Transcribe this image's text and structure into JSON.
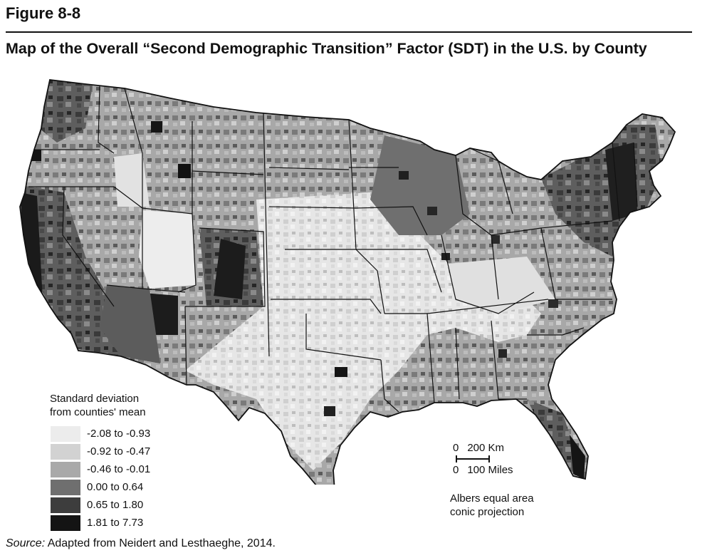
{
  "figure_label": "Figure 8-8",
  "title": "Map of the Overall “Second Demographic Transition” Factor (SDT) in the U.S. by County",
  "legend": {
    "title_line1": "Standard deviation",
    "title_line2": "from counties' mean",
    "items": [
      {
        "label": "-2.08 to -0.93",
        "color": "#ececec"
      },
      {
        "label": "-0.92 to -0.47",
        "color": "#d2d2d2"
      },
      {
        "label": "-0.46 to -0.01",
        "color": "#a9a9a9"
      },
      {
        "label": "0.00 to  0.64",
        "color": "#6f6f6f"
      },
      {
        "label": "0.65 to  1.80",
        "color": "#3d3d3d"
      },
      {
        "label": "1.81 to  7.73",
        "color": "#141414"
      }
    ]
  },
  "scale": {
    "km_zero": "0",
    "km_label": "200 Km",
    "mi_zero": "0",
    "mi_label": "100 Miles"
  },
  "projection_line1": "Albers equal area",
  "projection_line2": "conic projection",
  "source_prefix": "Source:",
  "source_text": "Adapted from Neidert and Lesthaeghe, 2014."
}
